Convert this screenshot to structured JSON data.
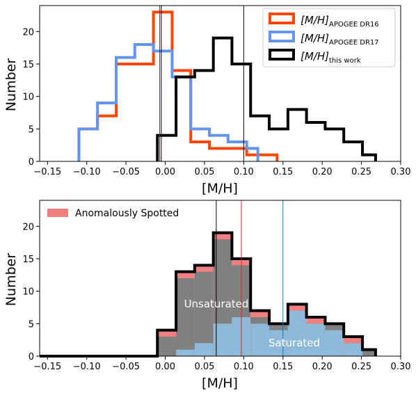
{
  "colors": {
    "dr16": "#ff4500",
    "dr17": "#6495ed",
    "this_work": "#000000",
    "spotted": "#f08080",
    "unsaturated": "#808080",
    "saturated": "#8fb9d8",
    "vline_black": "#000000",
    "vline_purple": "#800080",
    "vline_red": "#d62728",
    "vline_blue": "#1f77b4"
  },
  "chart_data": [
    {
      "type": "step-histogram",
      "xlabel": "[M/H]",
      "ylabel": "Number",
      "xlim": [
        -0.16,
        0.3
      ],
      "ylim": [
        0,
        24
      ],
      "xticks": [
        -0.15,
        -0.1,
        -0.05,
        0.0,
        0.05,
        0.1,
        0.15,
        0.2,
        0.25,
        0.3
      ],
      "xtick_labels": [
        "−0.15",
        "−0.10",
        "−0.05",
        "0.00",
        "0.05",
        "0.10",
        "0.15",
        "0.20",
        "0.25",
        "0.30"
      ],
      "yticks": [
        0,
        5,
        10,
        15,
        20
      ],
      "legend_position": "top-right",
      "series": [
        {
          "key": "dr16",
          "legend_main": "[M/H]",
          "legend_sub": "APOGEE DR16",
          "edges": [
            -0.11,
            -0.0863,
            -0.0625,
            -0.0388,
            -0.015,
            0.0088,
            0.0325,
            0.0563,
            0.08,
            0.1038,
            0.1275,
            0.1425
          ],
          "counts": [
            5,
            7,
            15,
            15,
            23,
            14,
            3,
            2,
            2,
            1,
            1
          ]
        },
        {
          "key": "dr17",
          "legend_main": "[M/H]",
          "legend_sub": "APOGEE DR17",
          "edges": [
            -0.11,
            -0.0863,
            -0.0625,
            -0.0388,
            -0.015,
            0.0088,
            0.0325,
            0.0563,
            0.08,
            0.1038,
            0.118
          ],
          "counts": [
            5,
            9,
            16,
            18,
            17,
            13,
            5,
            4,
            3,
            2
          ]
        },
        {
          "key": "this_work",
          "legend_main": "[M/H]",
          "legend_sub": "this work",
          "edges": [
            -0.01,
            0.0138,
            0.0375,
            0.0613,
            0.085,
            0.1088,
            0.1325,
            0.1563,
            0.18,
            0.2038,
            0.2275,
            0.2513,
            0.268
          ],
          "counts": [
            4,
            13,
            14,
            19,
            15,
            7,
            5,
            8,
            6,
            5,
            3,
            1
          ]
        }
      ],
      "vlines": [
        {
          "x": -0.007,
          "color_key": "vline_purple"
        },
        {
          "x": -0.005,
          "color_key": "vline_black"
        },
        {
          "x": 0.1,
          "color_key": "vline_black"
        }
      ]
    },
    {
      "type": "stacked-histogram",
      "xlabel": "[M/H]",
      "ylabel": "Number",
      "xlim": [
        -0.16,
        0.3
      ],
      "ylim": [
        0,
        24
      ],
      "xticks": [
        -0.15,
        -0.1,
        -0.05,
        0.0,
        0.05,
        0.1,
        0.15,
        0.2,
        0.25,
        0.3
      ],
      "xtick_labels": [
        "−0.15",
        "−0.10",
        "−0.05",
        "0.00",
        "0.05",
        "0.10",
        "0.15",
        "0.20",
        "0.25",
        "0.30"
      ],
      "yticks": [
        0,
        5,
        10,
        15,
        20
      ],
      "legend_position": "top-left",
      "legend_label": "Anomalously Spotted",
      "edges": [
        -0.01,
        0.0138,
        0.0375,
        0.0613,
        0.085,
        0.1088,
        0.1325,
        0.1563,
        0.18,
        0.2038,
        0.2275,
        0.2513,
        0.268
      ],
      "total": [
        4,
        13,
        14,
        19,
        15,
        7,
        5,
        8,
        6,
        5,
        3,
        1
      ],
      "saturated": [
        0,
        1,
        2,
        5,
        6,
        5,
        4,
        7,
        5,
        4,
        2,
        0
      ],
      "spotted_top": [
        3,
        12,
        13,
        18,
        14,
        6,
        5,
        7,
        5,
        5,
        2,
        1
      ],
      "labels": {
        "unsaturated": "Unsaturated",
        "saturated": "Saturated"
      },
      "vlines": [
        {
          "x": 0.065,
          "color_key": "vline_black"
        },
        {
          "x": 0.097,
          "color_key": "vline_red"
        },
        {
          "x": 0.15,
          "color_key": "vline_blue"
        }
      ]
    }
  ]
}
